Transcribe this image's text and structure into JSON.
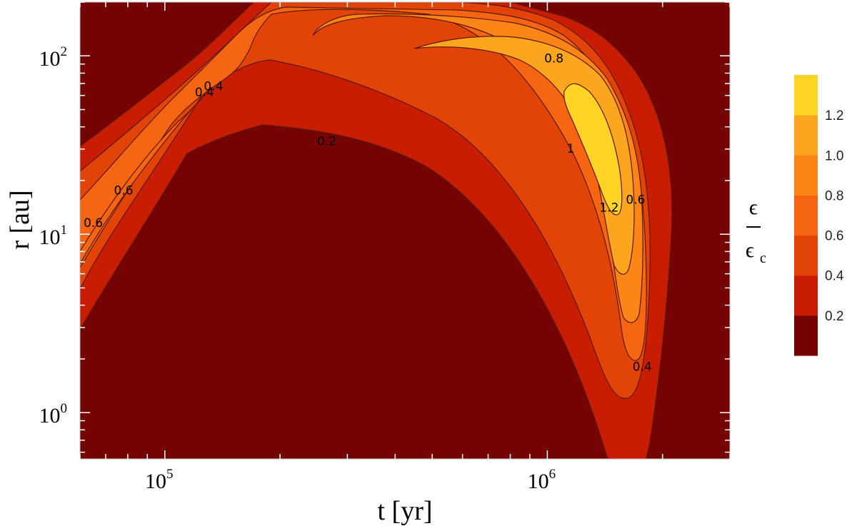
{
  "chart_data": {
    "type": "contour",
    "x_axis": {
      "label": "t [yr]",
      "scale": "log",
      "range": [
        60000,
        3000000
      ],
      "major_ticks": [
        {
          "value": 100000,
          "base": "10",
          "exp": "5"
        },
        {
          "value": 1000000,
          "base": "10",
          "exp": "6"
        }
      ]
    },
    "y_axis": {
      "label": "r [au]",
      "scale": "log",
      "range": [
        0.55,
        200
      ],
      "major_ticks": [
        {
          "value": 1,
          "base": "10",
          "exp": "0"
        },
        {
          "value": 10,
          "base": "10",
          "exp": "1"
        },
        {
          "value": 100,
          "base": "10",
          "exp": "2"
        }
      ]
    },
    "levels": [
      0.2,
      0.4,
      0.6,
      0.8,
      1.0,
      1.2
    ],
    "level_colors": [
      "#760303",
      "#c81d02",
      "#e24306",
      "#f56512",
      "#fb8516",
      "#fca51f",
      "#fdd326"
    ],
    "colorbar": {
      "title_numerator": "ϵ",
      "title_denominator": "ϵ",
      "title_subscript": "c",
      "tick_labels": [
        {
          "value": 0.2,
          "text": "0.2"
        },
        {
          "value": 0.4,
          "text": "0.4"
        },
        {
          "value": 0.6,
          "text": "0.6"
        },
        {
          "value": 0.8,
          "text": "0.8"
        },
        {
          "value": 1.0,
          "text": "1.0"
        },
        {
          "value": 1.2,
          "text": "1.2"
        }
      ]
    },
    "contour_labels": [
      {
        "text": "0.2",
        "t": 265000,
        "r": 33
      },
      {
        "text": "0.4",
        "t": 127000,
        "r": 62
      },
      {
        "text": "0.4",
        "t": 134000,
        "r": 67
      },
      {
        "text": "0.6",
        "t": 78000,
        "r": 17.5
      },
      {
        "text": "0.6",
        "t": 65000,
        "r": 11.5
      },
      {
        "text": "0.8",
        "t": 1040000,
        "r": 96
      },
      {
        "text": "1",
        "t": 1150000,
        "r": 30
      },
      {
        "text": "1.2",
        "t": 1450000,
        "r": 14
      },
      {
        "text": "0.6",
        "t": 1700000,
        "r": 15.5
      },
      {
        "text": "0.4",
        "t": 1770000,
        "r": 1.8
      }
    ],
    "grid": false
  }
}
